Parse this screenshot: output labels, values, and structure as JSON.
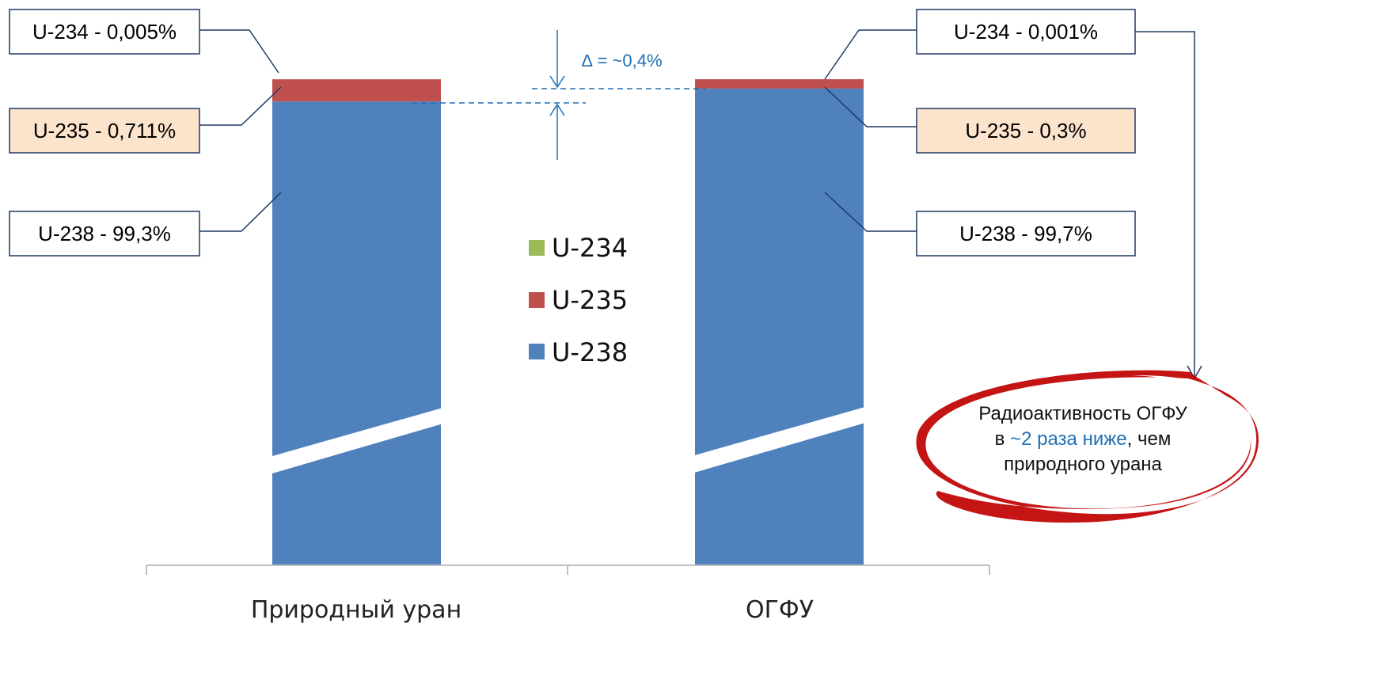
{
  "chart_data": {
    "type": "bar",
    "stacked": true,
    "axis_break": true,
    "categories": [
      "Природный уран",
      "ОГФУ"
    ],
    "series": [
      {
        "name": "U-234",
        "color": "#9bbb59",
        "values": [
          0.005,
          0.001
        ]
      },
      {
        "name": "U-235",
        "color": "#c0504d",
        "values": [
          0.711,
          0.3
        ]
      },
      {
        "name": "U-238",
        "color": "#4f81bd",
        "values": [
          99.3,
          99.7
        ]
      }
    ],
    "legend_position": "center",
    "grid": false
  },
  "callouts": {
    "left": {
      "u234": "U-234 - 0,005%",
      "u235": "U-235 - 0,711%",
      "u238": "U-238 - 99,3%"
    },
    "right": {
      "u234": "U-234 - 0,001%",
      "u235": "U-235 - 0,3%",
      "u238": "U-238 - 99,7%"
    }
  },
  "delta_label": "∆ = ~0,4%",
  "note": {
    "line1": "Радиоактивность ОГФУ",
    "line2_prefix": "в ",
    "line2_highlight": "~2 раза ниже",
    "line2_suffix": ", чем",
    "line3": "природного урана"
  },
  "colors": {
    "callout_highlight_fill": "#fce4cc",
    "callout_border": "#1f3864",
    "arrow": "#1f6fb5",
    "ellipse": "#c00000",
    "highlight_text": "#1f6fb5"
  }
}
